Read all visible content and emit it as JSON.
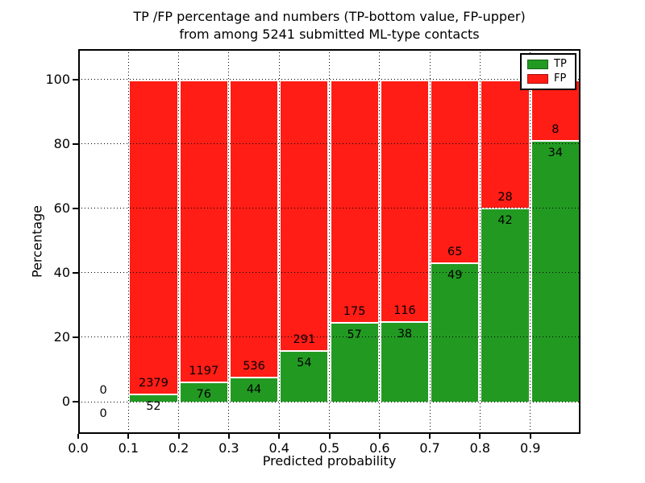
{
  "title": {
    "line1": "TP /FP percentage and numbers (TP-bottom value, FP-upper)",
    "line2": "from among 5241 submitted ML-type contacts"
  },
  "colors": {
    "tp_green": "#229a22",
    "fp_red": "#ff1d15",
    "grid": "#000000",
    "background": "#ffffff"
  },
  "legend": [
    {
      "label": "TP",
      "color_key": "tp_green"
    },
    {
      "label": "FP",
      "color_key": "fp_red"
    }
  ],
  "chart_data": {
    "type": "bar",
    "stacked": true,
    "normalized_to_percent": true,
    "title": "TP /FP percentage and numbers (TP-bottom value, FP-upper) from among 5241 submitted ML-type contacts",
    "total_submitted": 5241,
    "x": {
      "label": "Predicted probability",
      "lim": [
        0.0,
        1.0
      ],
      "tick_labels": [
        "0.0",
        "0.1",
        "0.2",
        "0.3",
        "0.4",
        "0.5",
        "0.6",
        "0.7",
        "0.8",
        "0.9"
      ],
      "tick_values": [
        0.0,
        0.1,
        0.2,
        0.3,
        0.4,
        0.5,
        0.6,
        0.7,
        0.8,
        0.9
      ]
    },
    "y": {
      "label": "Percentage",
      "lim": [
        -10,
        110
      ],
      "tick_labels": [
        "0",
        "20",
        "40",
        "60",
        "80",
        "100"
      ],
      "tick_values": [
        0,
        20,
        40,
        60,
        80,
        100
      ]
    },
    "grid": "dotted-black-both-axes",
    "legend_position": "upper-right",
    "series_note": "green TP segment from 0 to tp_pct, red FP segment from tp_pct to 100; FP count printed above boundary, TP count below",
    "bins": [
      {
        "start": 0.0,
        "end": 0.1,
        "tp": 0,
        "fp": 0,
        "tp_pct": 0.0,
        "fp_pct": 0.0
      },
      {
        "start": 0.1,
        "end": 0.2,
        "tp": 52,
        "fp": 2379,
        "tp_pct": 2.14,
        "fp_pct": 97.86
      },
      {
        "start": 0.2,
        "end": 0.3,
        "tp": 76,
        "fp": 1197,
        "tp_pct": 5.97,
        "fp_pct": 94.03
      },
      {
        "start": 0.3,
        "end": 0.4,
        "tp": 44,
        "fp": 536,
        "tp_pct": 7.59,
        "fp_pct": 92.41
      },
      {
        "start": 0.4,
        "end": 0.5,
        "tp": 54,
        "fp": 291,
        "tp_pct": 15.65,
        "fp_pct": 84.35
      },
      {
        "start": 0.5,
        "end": 0.6,
        "tp": 57,
        "fp": 175,
        "tp_pct": 24.57,
        "fp_pct": 75.43
      },
      {
        "start": 0.6,
        "end": 0.7,
        "tp": 38,
        "fp": 116,
        "tp_pct": 24.68,
        "fp_pct": 75.32
      },
      {
        "start": 0.7,
        "end": 0.8,
        "tp": 49,
        "fp": 65,
        "tp_pct": 42.98,
        "fp_pct": 57.02
      },
      {
        "start": 0.8,
        "end": 0.9,
        "tp": 42,
        "fp": 28,
        "tp_pct": 60.0,
        "fp_pct": 40.0
      },
      {
        "start": 0.9,
        "end": 1.0,
        "tp": 34,
        "fp": 8,
        "tp_pct": 80.95,
        "fp_pct": 19.05
      }
    ]
  }
}
